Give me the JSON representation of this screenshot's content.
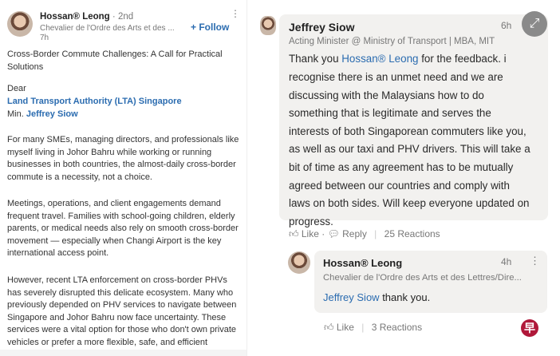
{
  "post": {
    "author": "Hossan® Leong",
    "degree": "· 2nd",
    "headline": "Chevalier de l'Ordre des Arts et des ...",
    "time": "7h",
    "follow_label": "+ Follow",
    "title_lines": [
      "Cross-Border Commute Challenges: A Call for Practical",
      "Solutions"
    ],
    "salutation": "Dear",
    "mention_lta": "Land Transport Authority (LTA) Singapore",
    "min_prefix": "Min.",
    "mention_minister": "Jeffrey Siow",
    "para1": [
      "For many SMEs, managing directors, and professionals like",
      "myself living in Johor Bahru while working or running",
      "businesses in both countries, the almost-daily cross-border",
      "commute is a necessity, not a choice."
    ],
    "para2": [
      "Meetings, operations, and client engagements demand",
      "frequent travel. Families with school-going children, elderly",
      "parents, or medical needs also rely on smooth cross-border",
      "movement — especially when Changi Airport is the key",
      "international access point."
    ],
    "para3": [
      "However, recent LTA enforcement on cross-border PHVs",
      "has severely disrupted this delicate ecosystem. Many who",
      "previously depended on PHV services to navigate between",
      "Singapore and Johor Bahru now face uncertainty. These",
      "services were a vital option for those who don't own private",
      "vehicles or prefer a more flexible, safe, and efficient"
    ]
  },
  "comment": {
    "author": "Jeffrey Siow",
    "time": "6h",
    "headline": "Acting Minister @ Ministry of Transport | MBA, MIT",
    "first_prefix": "Thank you ",
    "mention": "Hossan® Leong",
    "first_suffix": " for the feedback. i",
    "lines": [
      "recognise there is an unmet need and we are",
      "discussing with the Malaysians how to do",
      "something that is legitimate and serves the",
      "interests of both Singaporean commuters like you,",
      "as well as our taxi and PHV drivers. This will take a",
      "bit of time as any agreement has to be mutually",
      "agreed between our countries and comply with",
      "laws on both sides. Will keep everyone updated on",
      "progress."
    ],
    "like_label": "Like",
    "reply_label": "Reply",
    "reactions": "25 Reactions"
  },
  "reply": {
    "author": "Hossan® Leong",
    "time": "4h",
    "headline": "Chevalier de l'Ordre des Arts et des Lettres/Dire...",
    "mention": "Jeffrey Siow",
    "text": " thank you.",
    "like_label": "Like",
    "reactions": "3 Reactions"
  },
  "watermark": "早",
  "colors": {
    "link": "#2b6cb0",
    "bubble": "#f2f1ef",
    "logo": "#b0183a"
  }
}
